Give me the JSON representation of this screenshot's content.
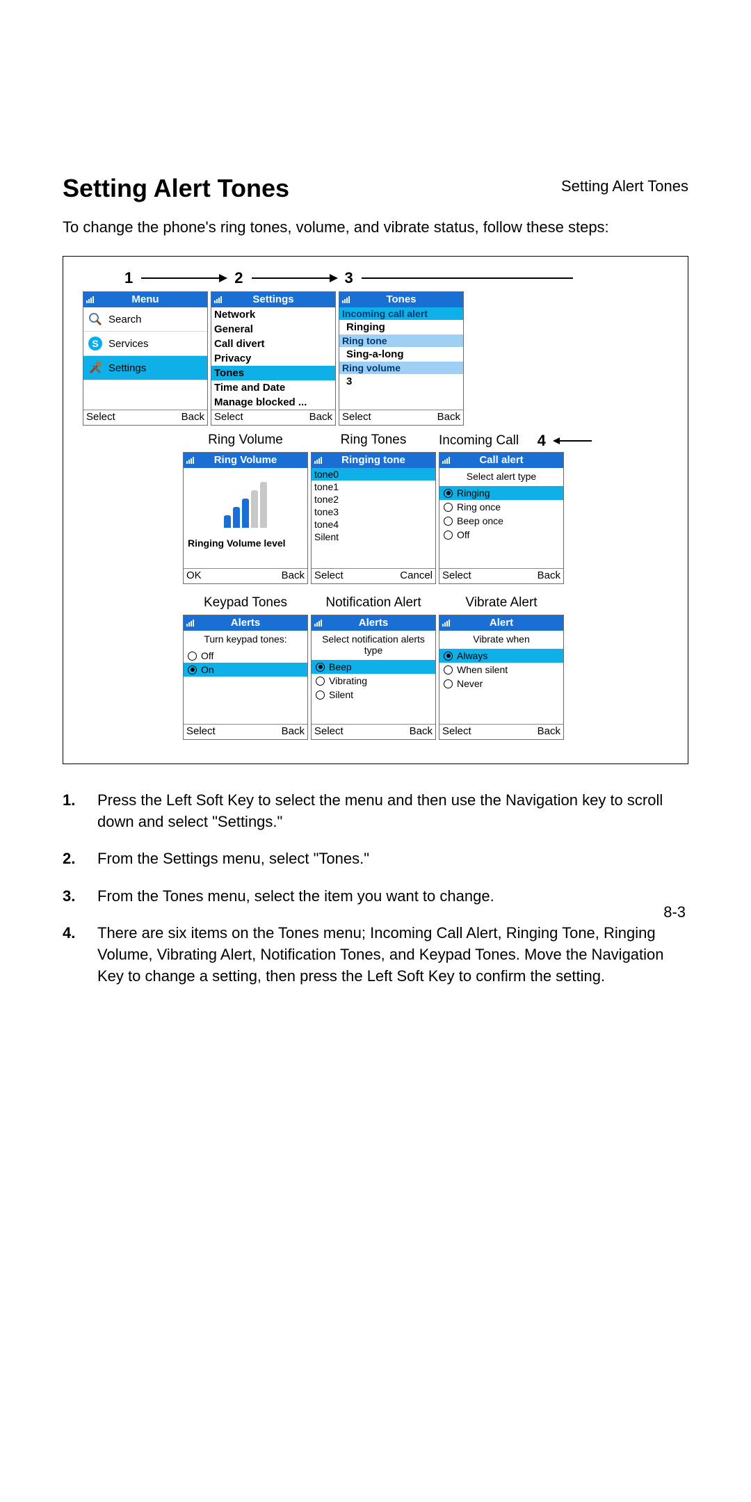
{
  "header_label": "Setting Alert Tones",
  "title": "Setting Alert Tones",
  "intro": "To change the phone's ring tones, volume, and vibrate status, follow these steps:",
  "step_numbers": [
    "1",
    "2",
    "3",
    "4"
  ],
  "colors": {
    "title_bar": "#1a6fd4",
    "highlight": "#0fb0e8",
    "group_header": "#9fd0f4",
    "vol_active": "#1a6fd4",
    "vol_inactive": "#c8c8c8"
  },
  "screen_menu": {
    "title": "Menu",
    "items": [
      "Search",
      "Services",
      "Settings"
    ],
    "selected": 2,
    "icons": [
      "magnifier",
      "skype",
      "tools"
    ],
    "left": "Select",
    "right": "Back"
  },
  "screen_settings": {
    "title": "Settings",
    "items": [
      "Network",
      "General",
      "Call divert",
      "Privacy",
      "Tones",
      "Time and Date",
      "Manage blocked ..."
    ],
    "selected": 4,
    "left": "Select",
    "right": "Back"
  },
  "screen_tones": {
    "title": "Tones",
    "groups": [
      {
        "header": "Incoming call alert",
        "value": "Ringing",
        "header_sel": true
      },
      {
        "header": "Ring tone",
        "value": "Sing-a-long"
      },
      {
        "header": "Ring volume",
        "value": "3"
      }
    ],
    "left": "Select",
    "right": "Back"
  },
  "row2_labels": [
    "Ring Volume",
    "Ring Tones",
    "Incoming Call"
  ],
  "screen_volume": {
    "title": "Ring Volume",
    "label": "Ringing Volume level",
    "bars": [
      18,
      30,
      42,
      54,
      66
    ],
    "level": 3,
    "left": "OK",
    "right": "Back"
  },
  "screen_ringtone": {
    "title": "Ringing tone",
    "items": [
      "tone0",
      "tone1",
      "tone2",
      "tone3",
      "tone4",
      "Silent"
    ],
    "selected": 0,
    "left": "Select",
    "right": "Cancel"
  },
  "screen_callalert": {
    "title": "Call alert",
    "subtitle": "Select alert type",
    "items": [
      "Ringing",
      "Ring once",
      "Beep once",
      "Off"
    ],
    "selected": 0,
    "left": "Select",
    "right": "Back"
  },
  "row3_labels": [
    "Keypad Tones",
    "Notification Alert",
    "Vibrate Alert"
  ],
  "screen_keypad": {
    "title": "Alerts",
    "subtitle": "Turn keypad tones:",
    "items": [
      "Off",
      "On"
    ],
    "selected": 1,
    "left": "Select",
    "right": "Back"
  },
  "screen_notify": {
    "title": "Alerts",
    "subtitle": "Select notification alerts type",
    "items": [
      "Beep",
      "Vibrating",
      "Silent"
    ],
    "selected": 0,
    "left": "Select",
    "right": "Back"
  },
  "screen_vibrate": {
    "title": "Alert",
    "subtitle": "Vibrate when",
    "items": [
      "Always",
      "When silent",
      "Never"
    ],
    "selected": 0,
    "left": "Select",
    "right": "Back"
  },
  "instructions": [
    "Press the Left Soft Key to select the menu and then use the Navigation key to scroll down and select \"Settings.\"",
    "From the Settings menu, select \"Tones.\"",
    "From the Tones menu, select the item you want to change.",
    "There are six items on the Tones menu; Incoming Call Alert, Ringing Tone, Ringing Volume, Vibrating Alert, Notification Tones, and Keypad Tones. Move the Navigation Key to change a setting, then press the Left Soft Key to confirm the setting."
  ],
  "page_number": "8-3"
}
